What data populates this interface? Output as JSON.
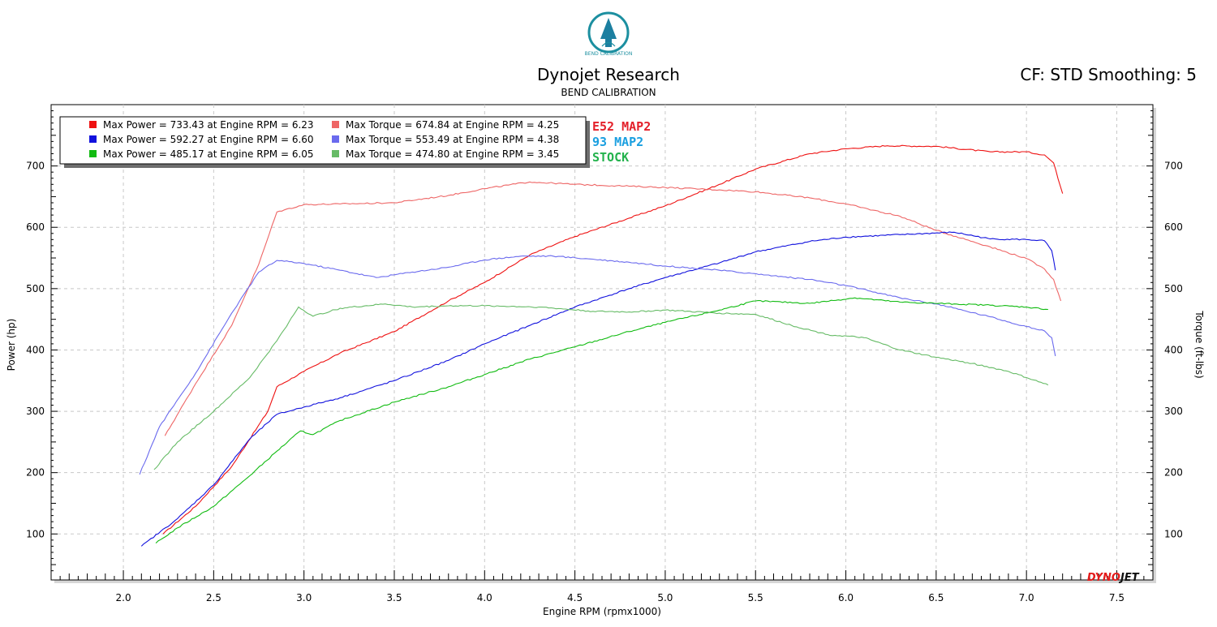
{
  "header": {
    "logo_text": "BEND CALIBRATION",
    "title": "Dynojet Research",
    "subtitle": "BEND CALIBRATION",
    "cf": "CF: STD Smoothing: 5"
  },
  "brand": {
    "text": "DYNOJET",
    "colors": {
      "dyno": "#e41b1b",
      "jet": "#111111"
    }
  },
  "legend": [
    {
      "swatch": "#ee1111",
      "text": "Max Power = 733.43 at Engine RPM = 6.23"
    },
    {
      "swatch": "#ee6666",
      "text": "Max Torque = 674.84 at Engine RPM = 4.25"
    },
    {
      "swatch": "#1111dd",
      "text": "Max Power = 592.27 at Engine RPM = 6.60"
    },
    {
      "swatch": "#6a6aee",
      "text": "Max Torque = 553.49 at Engine RPM = 4.38"
    },
    {
      "swatch": "#11bb11",
      "text": "Max Power = 485.17 at Engine RPM = 6.05"
    },
    {
      "swatch": "#66bb66",
      "text": "Max Torque = 474.80 at Engine RPM = 3.45"
    }
  ],
  "run_labels": [
    {
      "text": "E52 MAP2",
      "color": "#e3202a"
    },
    {
      "text": "93 MAP2",
      "color": "#1a9fe0"
    },
    {
      "text": "STOCK",
      "color": "#22b24c"
    }
  ],
  "chart_data": {
    "type": "line",
    "title": "Dynojet Research",
    "subtitle": "BEND CALIBRATION",
    "xlabel": "Engine RPM (rpmx1000)",
    "ylabel": "Power (hp)",
    "y2label": "Torque (ft-lbs)",
    "xlim": [
      1.6,
      7.7
    ],
    "ylim": [
      25,
      800
    ],
    "xticks": [
      2.0,
      2.5,
      3.0,
      3.5,
      4.0,
      4.5,
      5.0,
      5.5,
      6.0,
      6.5,
      7.0,
      7.5
    ],
    "xtick_labels": [
      "2.0",
      "2.5",
      "3.0",
      "3.5",
      "4.0",
      "4.5",
      "5.0",
      "5.5",
      "6.0",
      "6.5",
      "7.0",
      "7.5"
    ],
    "yticks": [
      100,
      200,
      300,
      400,
      500,
      600,
      700
    ],
    "ytick_labels": [
      "100",
      "200",
      "300",
      "400",
      "500",
      "600",
      "700"
    ],
    "grid": true,
    "legend_position": "top-left",
    "series": [
      {
        "name": "E52 MAP2",
        "measure": "Power",
        "color": "#ee1111",
        "x": [
          2.22,
          2.4,
          2.6,
          2.8,
          2.85,
          3.0,
          3.2,
          3.5,
          3.8,
          4.0,
          4.25,
          4.5,
          4.8,
          5.0,
          5.3,
          5.5,
          5.8,
          6.0,
          6.23,
          6.5,
          6.8,
          7.0,
          7.1,
          7.15,
          7.2
        ],
        "y": [
          100,
          145,
          210,
          300,
          340,
          365,
          395,
          430,
          480,
          510,
          555,
          585,
          615,
          635,
          670,
          695,
          720,
          728,
          733,
          732,
          723,
          723,
          718,
          705,
          655
        ]
      },
      {
        "name": "E52 MAP2",
        "measure": "Torque",
        "color": "#ee6666",
        "x": [
          2.23,
          2.4,
          2.6,
          2.75,
          2.85,
          3.0,
          3.2,
          3.5,
          3.8,
          4.0,
          4.25,
          4.5,
          4.8,
          5.0,
          5.3,
          5.5,
          5.8,
          6.0,
          6.3,
          6.5,
          6.8,
          7.0,
          7.1,
          7.15,
          7.19
        ],
        "y": [
          260,
          345,
          440,
          540,
          625,
          637,
          638,
          640,
          652,
          663,
          674,
          670,
          667,
          665,
          661,
          658,
          648,
          638,
          618,
          595,
          568,
          549,
          532,
          515,
          480
        ]
      },
      {
        "name": "93 MAP2",
        "measure": "Power",
        "color": "#1111dd",
        "x": [
          2.1,
          2.3,
          2.5,
          2.7,
          2.85,
          3.0,
          3.2,
          3.5,
          3.8,
          4.0,
          4.25,
          4.5,
          4.8,
          5.0,
          5.3,
          5.5,
          5.8,
          6.0,
          6.3,
          6.6,
          6.8,
          7.0,
          7.1,
          7.14,
          7.16
        ],
        "y": [
          80,
          125,
          180,
          255,
          295,
          307,
          322,
          350,
          383,
          410,
          440,
          470,
          500,
          518,
          542,
          560,
          577,
          584,
          588,
          592,
          581,
          580,
          578,
          562,
          530
        ]
      },
      {
        "name": "93 MAP2",
        "measure": "Torque",
        "color": "#6a6aee",
        "x": [
          2.09,
          2.2,
          2.4,
          2.6,
          2.75,
          2.85,
          3.0,
          3.2,
          3.4,
          3.6,
          3.8,
          4.0,
          4.2,
          4.38,
          4.6,
          4.8,
          5.0,
          5.3,
          5.6,
          5.8,
          6.0,
          6.3,
          6.5,
          6.8,
          7.0,
          7.1,
          7.14,
          7.16
        ],
        "y": [
          197,
          275,
          362,
          460,
          527,
          546,
          541,
          530,
          518,
          527,
          535,
          547,
          553,
          553,
          548,
          543,
          537,
          530,
          521,
          515,
          505,
          485,
          475,
          454,
          438,
          431,
          420,
          390
        ]
      },
      {
        "name": "STOCK",
        "measure": "Power",
        "color": "#11bb11",
        "x": [
          2.18,
          2.3,
          2.5,
          2.7,
          2.85,
          2.98,
          3.05,
          3.2,
          3.5,
          3.8,
          4.0,
          4.25,
          4.5,
          4.8,
          5.0,
          5.3,
          5.5,
          5.8,
          6.05,
          6.3,
          6.6,
          6.8,
          7.0,
          7.12
        ],
        "y": [
          85,
          110,
          145,
          195,
          235,
          268,
          262,
          285,
          315,
          340,
          360,
          385,
          405,
          430,
          445,
          465,
          480,
          476,
          485,
          478,
          475,
          473,
          470,
          466
        ]
      },
      {
        "name": "STOCK",
        "measure": "Torque",
        "color": "#66bb66",
        "x": [
          2.17,
          2.3,
          2.5,
          2.7,
          2.85,
          2.97,
          3.05,
          3.2,
          3.45,
          3.6,
          3.8,
          4.0,
          4.3,
          4.6,
          4.8,
          5.0,
          5.3,
          5.5,
          5.7,
          5.9,
          6.1,
          6.3,
          6.5,
          6.7,
          6.9,
          7.0,
          7.12
        ],
        "y": [
          205,
          250,
          300,
          355,
          415,
          470,
          455,
          468,
          475,
          470,
          472,
          472,
          470,
          463,
          462,
          465,
          460,
          458,
          440,
          425,
          420,
          400,
          388,
          378,
          365,
          355,
          343
        ]
      }
    ]
  }
}
